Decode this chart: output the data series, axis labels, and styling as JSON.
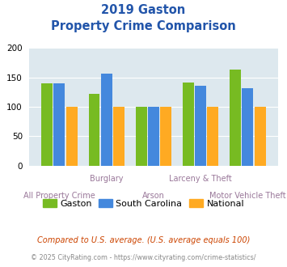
{
  "title_line1": "2019 Gaston",
  "title_line2": "Property Crime Comparison",
  "categories": [
    "All Property Crime",
    "Burglary",
    "Arson",
    "Larceny & Theft",
    "Motor Vehicle Theft"
  ],
  "gaston_values": [
    140,
    122,
    100,
    141,
    163
  ],
  "sc_values": [
    140,
    157,
    100,
    136,
    131
  ],
  "national_values": [
    100,
    100,
    100,
    100,
    100
  ],
  "gaston_color": "#77bb22",
  "sc_color": "#4488dd",
  "national_color": "#ffaa22",
  "background_color": "#dde8ee",
  "ylim": [
    0,
    200
  ],
  "yticks": [
    0,
    50,
    100,
    150,
    200
  ],
  "legend_labels": [
    "Gaston",
    "South Carolina",
    "National"
  ],
  "footer_text1": "Compared to U.S. average. (U.S. average equals 100)",
  "footer_text2": "© 2025 CityRating.com - https://www.cityrating.com/crime-statistics/",
  "title_color": "#2255aa",
  "xlabel_color": "#997799",
  "footer1_color": "#cc4400",
  "footer2_color": "#888888",
  "bar_width": 0.24,
  "bar_gap": 0.02
}
